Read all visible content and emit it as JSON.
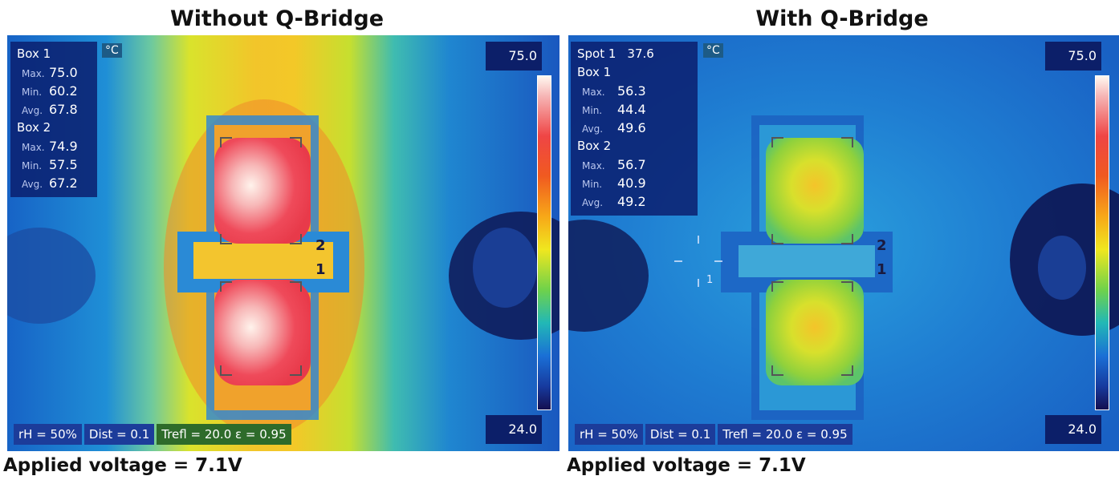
{
  "panels": {
    "left": {
      "title": "Without Q-Bridge",
      "unit": "°C",
      "scale_max": "75.0",
      "scale_min": "24.0",
      "box1": {
        "label": "Box 1",
        "max_label": "Max.",
        "max": "75.0",
        "min_label": "Min.",
        "min": "60.2",
        "avg_label": "Avg.",
        "avg": "67.8"
      },
      "box2": {
        "label": "Box 2",
        "max_label": "Max.",
        "max": "74.9",
        "min_label": "Min.",
        "min": "57.5",
        "avg_label": "Avg.",
        "avg": "67.2"
      },
      "marker_2": "2",
      "marker_1": "1",
      "status": {
        "rh": "rH = 50%",
        "dist": "Dist = 0.1",
        "trefl": "Trefl = 20.0  ε = 0.95"
      },
      "voltage": "Applied voltage = 7.1V"
    },
    "right": {
      "title": "With Q-Bridge",
      "unit": "°C",
      "scale_max": "75.0",
      "scale_min": "24.0",
      "spot": {
        "label": "Spot 1",
        "value": "37.6"
      },
      "box1": {
        "label": "Box 1",
        "max_label": "Max.",
        "max": "56.3",
        "min_label": "Min.",
        "min": "44.4",
        "avg_label": "Avg.",
        "avg": "49.6"
      },
      "box2": {
        "label": "Box 2",
        "max_label": "Max.",
        "max": "56.7",
        "min_label": "Min.",
        "min": "40.9",
        "avg_label": "Avg.",
        "avg": "49.2"
      },
      "marker_2": "2",
      "marker_1": "1",
      "spot_marker": "1",
      "status": {
        "rh": "rH = 50%",
        "dist": "Dist = 0.1",
        "trefl": "Trefl = 20.0  ε = 0.95"
      },
      "voltage": "Applied voltage = 7.1V"
    }
  }
}
